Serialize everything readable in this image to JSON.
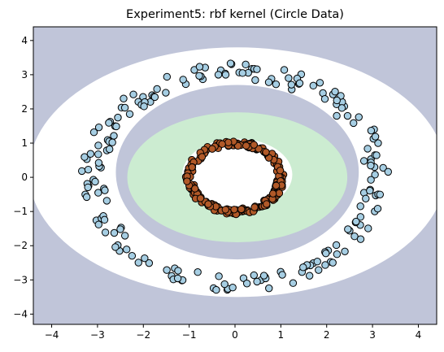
{
  "chart_data": {
    "type": "scatter",
    "title": "Experiment5: rbf kernel (Circle Data)",
    "xlabel": "",
    "ylabel": "",
    "xlim": [
      -4.4,
      4.4
    ],
    "ylim": [
      -4.3,
      4.4
    ],
    "xticks": [
      -4,
      -3,
      -2,
      -1,
      0,
      1,
      2,
      3,
      4
    ],
    "yticks": [
      -4,
      -3,
      -2,
      -1,
      0,
      1,
      2,
      3,
      4
    ],
    "xtick_labels": [
      "−4",
      "−3",
      "−2",
      "−1",
      "0",
      "1",
      "2",
      "3",
      "4"
    ],
    "ytick_labels": [
      "−4",
      "−3",
      "−2",
      "−1",
      "0",
      "1",
      "2",
      "3",
      "4"
    ],
    "grid": false,
    "background_colors": {
      "outer_region": "#c0c5d9",
      "margin_band": "#ffffff",
      "inner_region": "#ccecd1",
      "center_hole": "#ffffff"
    },
    "decision_regions": {
      "margin_band_outer": {
        "cx": 0.05,
        "cy": 0.15,
        "rx": 4.55,
        "ry": 3.65
      },
      "margin_band_inner": {
        "cx": 0.05,
        "cy": 0.15,
        "rx": 2.65,
        "ry": 2.55
      },
      "inner_green": {
        "cx": 0.05,
        "cy": 0.0,
        "rx": 2.4,
        "ry": 1.9
      },
      "center_hole": {
        "cx": 0.05,
        "cy": 0.08,
        "rx": 1.2,
        "ry": 1.05
      }
    },
    "series": [
      {
        "color": "#a6cee3",
        "edgecolor": "#000000",
        "radius": 3.1,
        "jitter": 0.25,
        "count": 200,
        "seed": 7
      },
      {
        "color": "#b15928",
        "edgecolor": "#000000",
        "radius": 1.0,
        "jitter": 0.08,
        "count": 200,
        "seed": 13
      }
    ]
  }
}
